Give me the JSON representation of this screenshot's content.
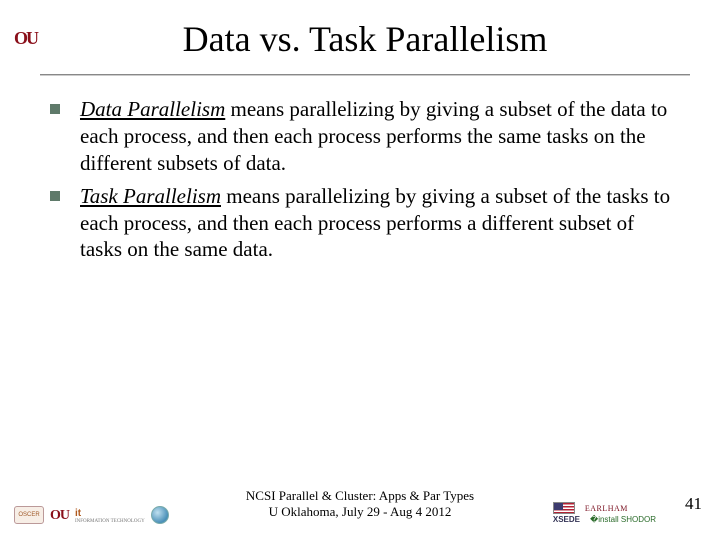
{
  "title": "Data vs. Task Parallelism",
  "bullets": [
    {
      "term": "Data Parallelism",
      "rest": " means parallelizing by giving a subset of the data to each process, and then each process performs the same tasks on the different subsets of data."
    },
    {
      "term": "Task Parallelism",
      "rest": " means parallelizing by giving a subset of the tasks to each process, and then each process performs a different subset of tasks on the same data."
    }
  ],
  "footer": {
    "line1": "NCSI Parallel & Cluster: Apps & Par Types",
    "line2": "U Oklahoma, July 29 - Aug 4 2012"
  },
  "page_number": "41",
  "logos": {
    "corner": "OU",
    "left": {
      "oscer": "OSCER",
      "ou": "OU",
      "it": "it",
      "it_sub": "INFORMATION\nTECHNOLOGY"
    },
    "right": {
      "earlham": "EARLHAM",
      "xsede": "XSEDE",
      "shodor": "SHODOR"
    }
  },
  "colors": {
    "bullet_marker": "#5f7a6a",
    "ou_crimson": "#8a0f1a",
    "background": "#ffffff",
    "text": "#000000"
  }
}
